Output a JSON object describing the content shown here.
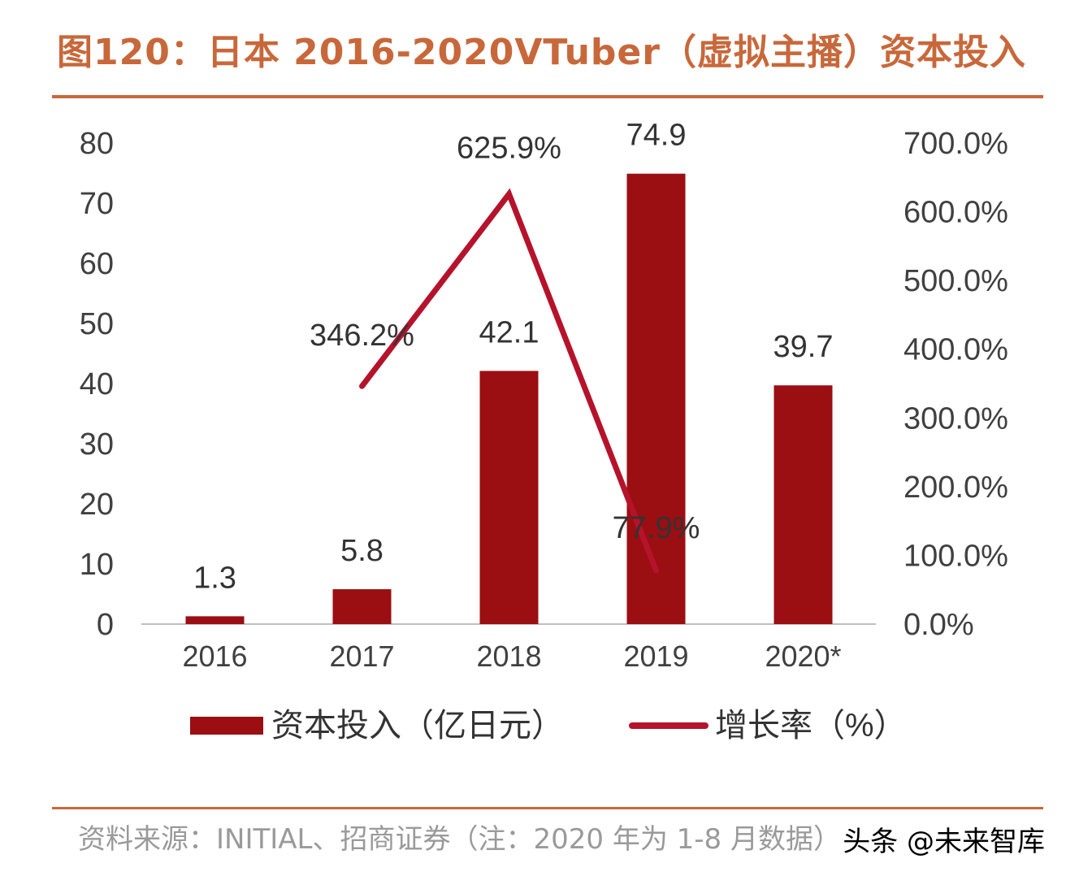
{
  "title": "图120：日本 2016-2020VTuber（虚拟主播）资本投入",
  "source": "资料来源：INITIAL、招商证券（注：2020 年为 1-8 月数据）",
  "watermark": "头条 @未来智库",
  "colors": {
    "bar": "#9b0e12",
    "line": "#b5132b",
    "title": "#c8683a",
    "axis_text": "#404040"
  },
  "chart_data": {
    "type": "bar",
    "categories": [
      "2016",
      "2017",
      "2018",
      "2019",
      "2020*"
    ],
    "series": [
      {
        "name": "资本投入（亿日元）",
        "type": "bar",
        "axis": "left",
        "values": [
          1.3,
          5.8,
          42.1,
          74.9,
          39.7
        ],
        "labels": [
          "1.3",
          "5.8",
          "42.1",
          "74.9",
          "39.7"
        ]
      },
      {
        "name": "增长率（%）",
        "type": "line",
        "axis": "right",
        "values": [
          null,
          346.2,
          625.9,
          77.9,
          null
        ],
        "labels": [
          "",
          "346.2%",
          "625.9%",
          "77.9%",
          ""
        ]
      }
    ],
    "y_left": {
      "min": 0,
      "max": 80,
      "step": 10,
      "ticks": [
        "0",
        "10",
        "20",
        "30",
        "40",
        "50",
        "60",
        "70",
        "80"
      ]
    },
    "y_right": {
      "min": 0,
      "max": 700,
      "step": 100,
      "ticks": [
        "0.0%",
        "100.0%",
        "200.0%",
        "300.0%",
        "400.0%",
        "500.0%",
        "600.0%",
        "700.0%"
      ]
    },
    "grid": false,
    "legend_position": "bottom"
  }
}
